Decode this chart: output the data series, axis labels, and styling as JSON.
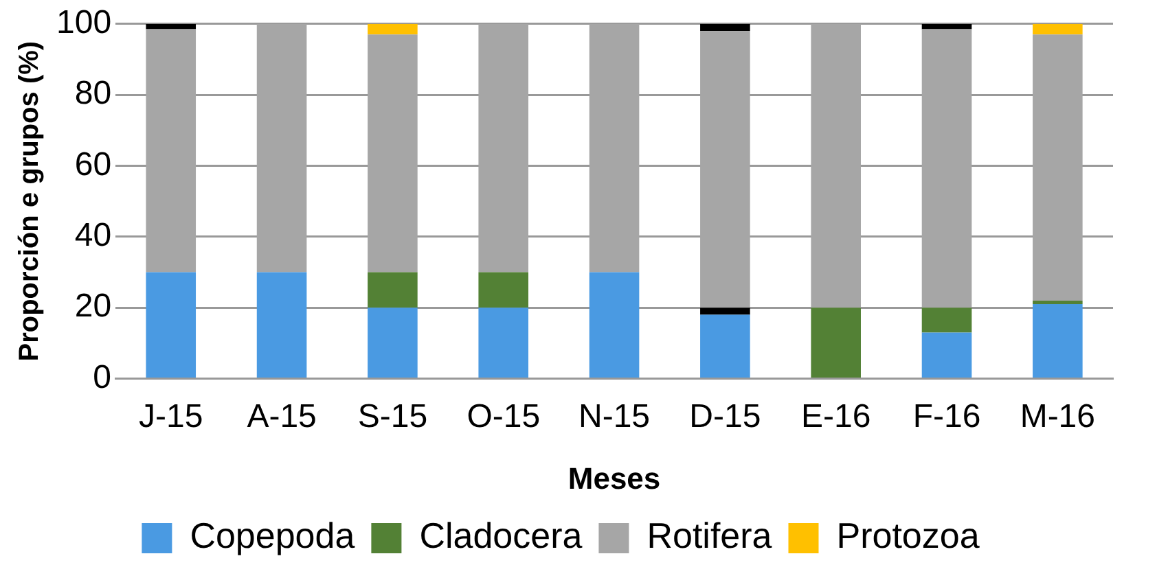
{
  "chart_data": {
    "type": "bar",
    "stacked": true,
    "xlabel": "Meses",
    "ylabel": "Proporción e grupos (%)",
    "categories": [
      "J-15",
      "A-15",
      "S-15",
      "O-15",
      "N-15",
      "D-15",
      "E-16",
      "F-16",
      "M-16"
    ],
    "ylim": [
      0,
      100
    ],
    "yticks": [
      0,
      20,
      40,
      60,
      80,
      100
    ],
    "grid": "y",
    "legend": "bottom",
    "series": [
      {
        "name": "Copepoda",
        "color": "#4a9ae2",
        "values": [
          30,
          30,
          20,
          20,
          30,
          18,
          0,
          13,
          21
        ]
      },
      {
        "color": "#000000",
        "values": [
          0,
          0,
          0,
          0,
          0,
          2,
          0,
          0,
          0
        ]
      },
      {
        "name": "Cladocera",
        "color": "#538135",
        "values": [
          0,
          0,
          10,
          10,
          0,
          0,
          20,
          7,
          1
        ]
      },
      {
        "name": "Rotifera",
        "color": "#a6a6a6",
        "values": [
          68.5,
          70,
          67,
          70,
          70,
          78,
          80,
          78.5,
          75
        ]
      },
      {
        "name": "Protozoa",
        "color": "#ffc000",
        "values": [
          0,
          0,
          3,
          0,
          0,
          0,
          0,
          0,
          3
        ]
      },
      {
        "color": "#000000",
        "values": [
          1.5,
          0,
          0,
          0,
          0,
          2,
          0,
          1.5,
          0
        ]
      }
    ]
  }
}
